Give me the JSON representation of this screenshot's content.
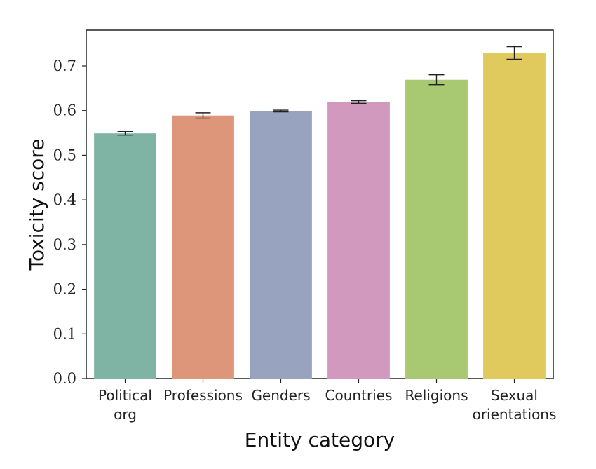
{
  "chart_data": {
    "type": "bar",
    "title": "",
    "xlabel": "Entity category",
    "ylabel": "Toxicity score",
    "ylim": [
      0,
      0.78
    ],
    "yticks": [
      "0.0",
      "0.1",
      "0.2",
      "0.3",
      "0.4",
      "0.5",
      "0.6",
      "0.7"
    ],
    "grid": false,
    "categories": [
      [
        "Political",
        "org"
      ],
      [
        "Professions"
      ],
      [
        "Genders"
      ],
      [
        "Countries"
      ],
      [
        "Religions"
      ],
      [
        "Sexual",
        "orientations"
      ]
    ],
    "values": [
      0.549,
      0.589,
      0.599,
      0.619,
      0.669,
      0.729
    ],
    "error": [
      0.004,
      0.006,
      0.002,
      0.003,
      0.011,
      0.014
    ],
    "colors": [
      "#7fb3a3",
      "#dd9679",
      "#97a3bf",
      "#d299bf",
      "#a8c872",
      "#e0c95d"
    ]
  }
}
